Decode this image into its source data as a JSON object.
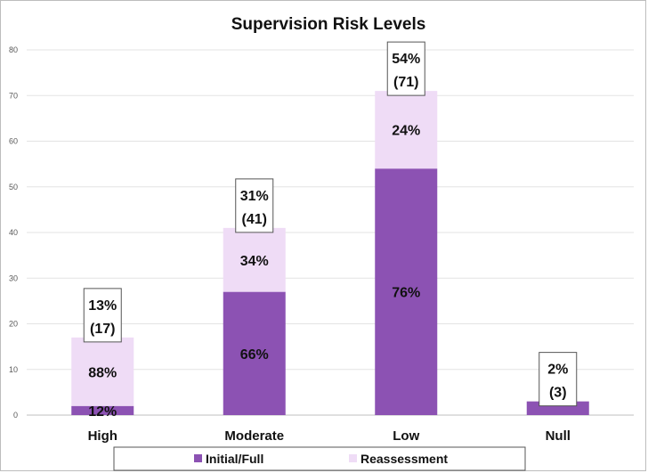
{
  "chart_data": {
    "type": "bar",
    "stacked": true,
    "title": "Supervision Risk Levels",
    "categories": [
      "High",
      "Moderate",
      "Low",
      "Null"
    ],
    "series": [
      {
        "name": "Initial/Full",
        "values": [
          2,
          27,
          54,
          3
        ],
        "color": "#8c52b3",
        "labels": [
          "12%",
          "66%",
          "76%",
          ""
        ]
      },
      {
        "name": "Reassessment",
        "values": [
          15,
          14,
          17,
          0
        ],
        "color": "#efdcf6",
        "labels": [
          "88%",
          "34%",
          "24%",
          ""
        ]
      }
    ],
    "totals": [
      {
        "percent": "13%",
        "count": "(17)"
      },
      {
        "percent": "31%",
        "count": "(41)"
      },
      {
        "percent": "54%",
        "count": "(71)"
      },
      {
        "percent": "2%",
        "count": "(3)"
      }
    ],
    "ylim": [
      0,
      80
    ],
    "yticks": [
      0,
      10,
      20,
      30,
      40,
      50,
      60,
      70,
      80
    ],
    "grid": true,
    "legend_position": "bottom",
    "xlabel": "",
    "ylabel": ""
  }
}
